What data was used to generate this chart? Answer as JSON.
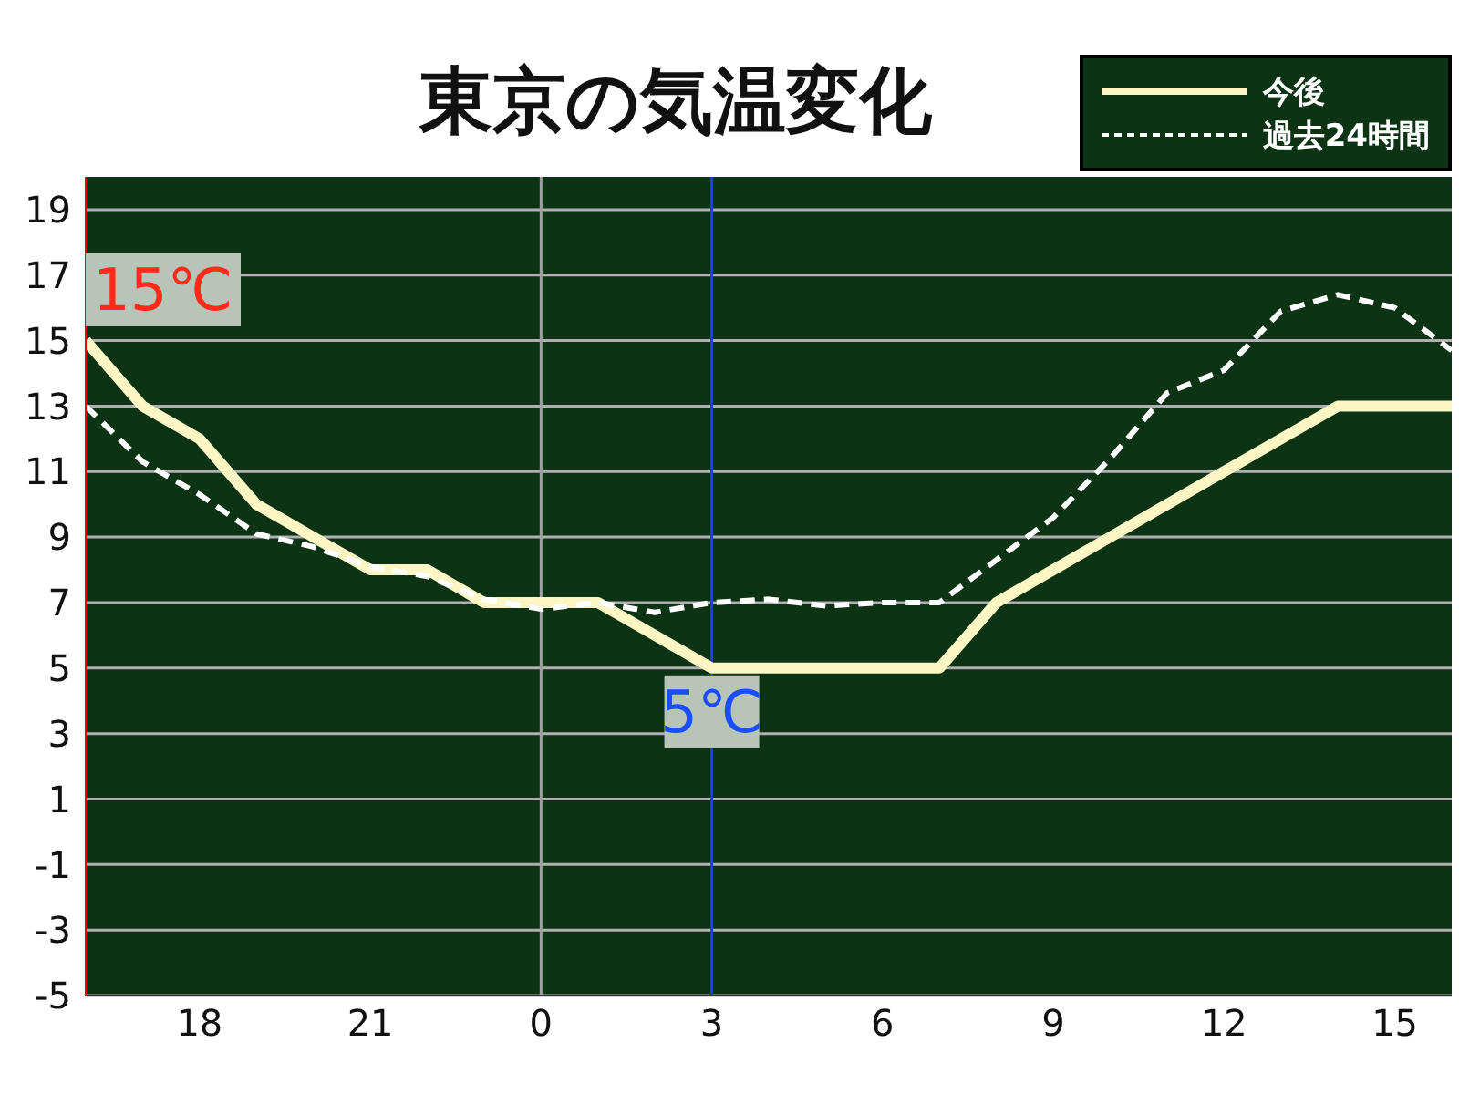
{
  "chart_data": {
    "type": "line",
    "title": "東京の気温変化",
    "categories": [
      null,
      null,
      "18",
      null,
      null,
      "21",
      null,
      null,
      "0",
      null,
      null,
      "3",
      null,
      null,
      "6",
      null,
      null,
      "9",
      null,
      null,
      "12",
      null,
      null,
      "15",
      null
    ],
    "series": [
      {
        "name": "今後",
        "color": "#fbf6c4",
        "line_style": "solid",
        "values": [
          15,
          13,
          12,
          10,
          9,
          8,
          8,
          7,
          7,
          7,
          6,
          5,
          5,
          5,
          5,
          5,
          7,
          8,
          9,
          10,
          11,
          12,
          13,
          13,
          13
        ]
      },
      {
        "name": "過去24時間",
        "color": "#ffffff",
        "line_style": "dashed",
        "values": [
          13,
          11.3,
          10.3,
          9.1,
          8.7,
          8.1,
          7.8,
          7.1,
          6.8,
          7,
          6.7,
          7,
          7.1,
          6.9,
          7,
          7,
          8.3,
          9.6,
          11.4,
          13.4,
          14.1,
          15.9,
          16.4,
          16,
          14.7
        ]
      }
    ],
    "ylim": [
      -5,
      20
    ],
    "yticks": [
      -5,
      -3,
      -1,
      1,
      3,
      5,
      7,
      9,
      11,
      13,
      15,
      17,
      19
    ],
    "grid": "y",
    "ref_lines": [
      {
        "axis": "x",
        "value": "0",
        "color": "#a0a0a0"
      },
      {
        "axis": "x",
        "value": "3",
        "color": "#1a3cff"
      }
    ],
    "annotations": [
      "15℃",
      {
        "text": "5℃",
        "x": "3",
        "y": 5
      }
    ],
    "legend": "top right",
    "marker": "none"
  }
}
